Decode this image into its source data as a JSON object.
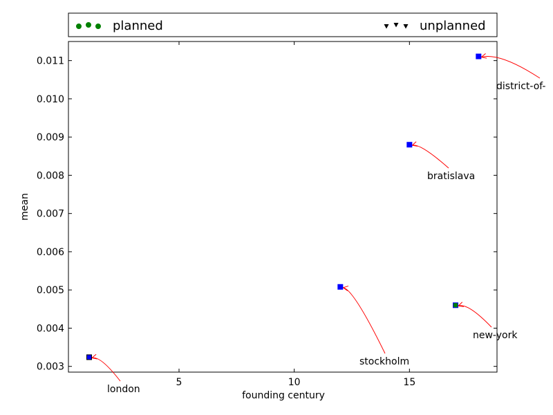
{
  "chart_data": {
    "type": "scatter",
    "xlabel": "founding century",
    "ylabel": "mean",
    "xlim": [
      0.2,
      18.8
    ],
    "ylim": [
      0.00285,
      0.0115
    ],
    "xticks": [
      5,
      10,
      15
    ],
    "xtick_labels": [
      "5",
      "10",
      "15"
    ],
    "yticks": [
      0.003,
      0.004,
      0.005,
      0.006,
      0.007,
      0.008,
      0.009,
      0.01,
      0.011
    ],
    "ytick_labels": [
      "0.003",
      "0.004",
      "0.005",
      "0.006",
      "0.007",
      "0.008",
      "0.009",
      "0.010",
      "0.011"
    ],
    "legend": {
      "placement": "above plot, spanning full width",
      "entries": [
        {
          "label": "planned",
          "marker": "circle",
          "color": "#008000"
        },
        {
          "label": "unplanned",
          "marker": "triangle-down",
          "color": "#000000"
        }
      ]
    },
    "points": [
      {
        "label": "london",
        "x": 1.1,
        "y": 0.00324,
        "fill": "#0000ff",
        "edge": "#000000"
      },
      {
        "label": "stockholm",
        "x": 12.0,
        "y": 0.00508,
        "fill": "#0000ff",
        "edge": "#0000ff"
      },
      {
        "label": "bratislava",
        "x": 15.0,
        "y": 0.0088,
        "fill": "#0000ff",
        "edge": "#0000ff"
      },
      {
        "label": "new-york",
        "x": 17.0,
        "y": 0.0046,
        "fill": "#008000",
        "edge": "#0000ff"
      },
      {
        "label": "district-of-",
        "x": 18.0,
        "y": 0.01111,
        "fill": "#0000ff",
        "edge": "#0000ff"
      }
    ],
    "arrow_color": "#ff0000",
    "grid": false
  }
}
